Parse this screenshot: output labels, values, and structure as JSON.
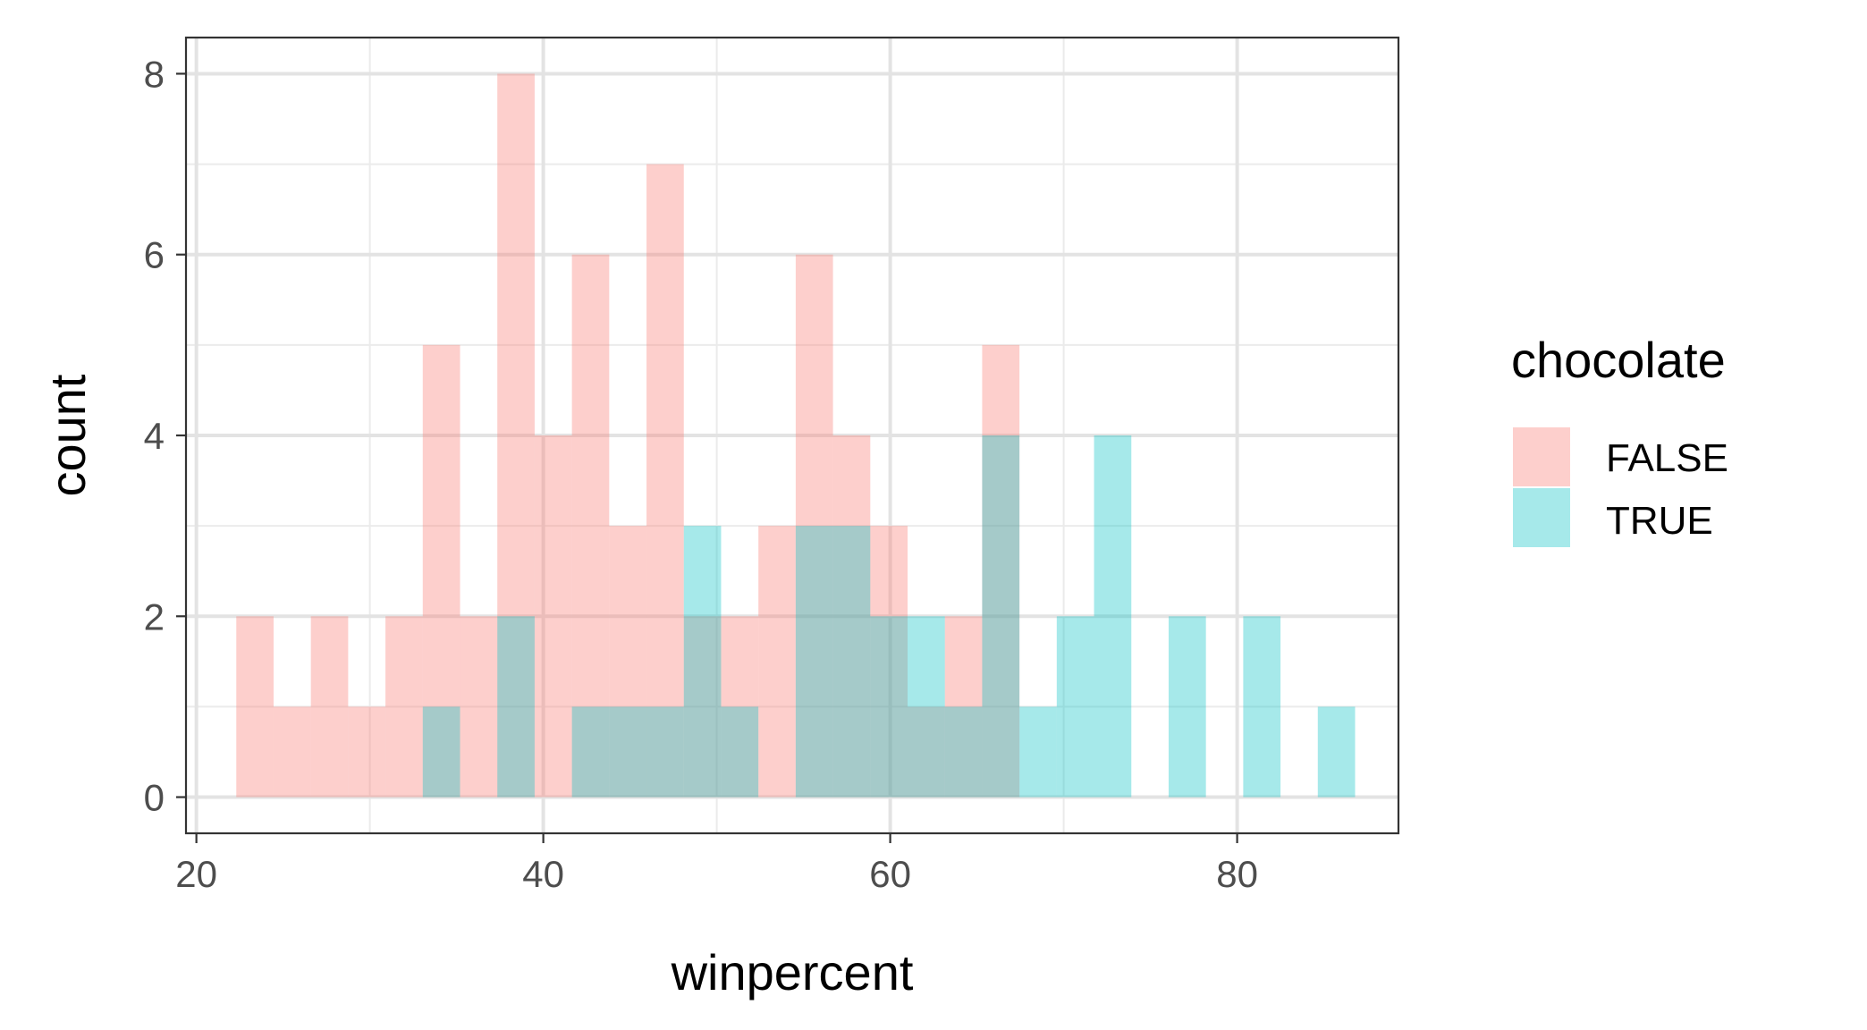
{
  "chart_data": {
    "type": "bar",
    "subtype": "histogram",
    "bin_width": 2.15,
    "bin_start": 22.3,
    "x": [
      23.38,
      25.53,
      27.68,
      29.83,
      31.98,
      34.13,
      36.28,
      38.43,
      40.58,
      42.73,
      44.88,
      47.03,
      49.18,
      51.33,
      53.48,
      55.63,
      57.78,
      59.93,
      62.08,
      64.23,
      66.38,
      68.53,
      70.68,
      72.83,
      74.98,
      77.13,
      79.28,
      81.43,
      83.58,
      85.73
    ],
    "series": [
      {
        "name": "FALSE",
        "color": "#F8766D",
        "values": [
          2,
          1,
          2,
          1,
          2,
          5,
          2,
          8,
          4,
          6,
          3,
          7,
          2,
          2,
          3,
          6,
          4,
          3,
          1,
          2,
          5,
          0,
          0,
          0,
          0,
          0,
          0,
          0,
          0,
          0
        ]
      },
      {
        "name": "TRUE",
        "color": "#00BFC4",
        "values": [
          0,
          0,
          0,
          0,
          0,
          1,
          0,
          2,
          0,
          1,
          1,
          1,
          3,
          1,
          0,
          3,
          3,
          2,
          2,
          1,
          4,
          1,
          2,
          4,
          0,
          2,
          0,
          2,
          0,
          1
        ]
      }
    ],
    "bar_opacity": 0.35,
    "xlabel": "winpercent",
    "ylabel": "count",
    "xlim": [
      19.4,
      89.3
    ],
    "ylim": [
      -0.4,
      8.4
    ],
    "x_ticks": [
      20,
      40,
      60,
      80
    ],
    "y_ticks": [
      0,
      2,
      4,
      6,
      8
    ],
    "x_minor_ticks": [
      30,
      50,
      70
    ],
    "y_minor_ticks": [
      1,
      3,
      5,
      7
    ],
    "grid": true,
    "legend": {
      "title": "chocolate",
      "entries": [
        "FALSE",
        "TRUE"
      ],
      "placement": "right"
    }
  }
}
